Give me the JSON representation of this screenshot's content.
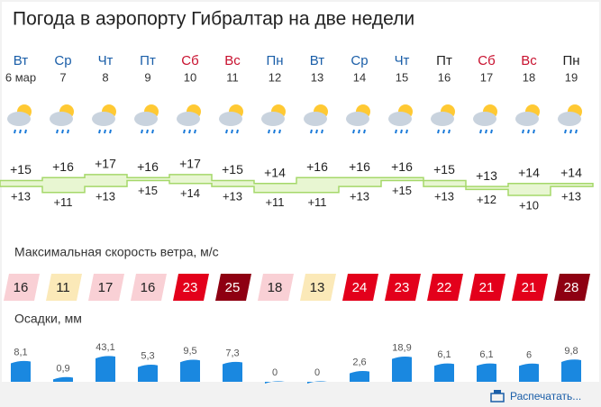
{
  "title": "Погода в аэропорту Гибралтар на две недели",
  "wind_title": "Максимальная скорость ветра, м/с",
  "precip_title": "Осадки, мм",
  "print_link": "Распечатать...",
  "days": [
    {
      "weekday": "Вт",
      "date": "6 мар",
      "weekday_color": "#1a5ea8",
      "tmax": 15,
      "tmax_label": "+15",
      "tmin": 13,
      "tmin_label": "+13",
      "wind": 16,
      "wind_color": "#f9d0d5",
      "precip": 8.1,
      "precip_label": "8,1"
    },
    {
      "weekday": "Ср",
      "date": "7",
      "weekday_color": "#1a5ea8",
      "tmax": 16,
      "tmax_label": "+16",
      "tmin": 11,
      "tmin_label": "+11",
      "wind": 11,
      "wind_color": "#fbe9b8",
      "precip": 0.9,
      "precip_label": "0,9"
    },
    {
      "weekday": "Чт",
      "date": "8",
      "weekday_color": "#1a5ea8",
      "tmax": 17,
      "tmax_label": "+17",
      "tmin": 13,
      "tmin_label": "+13",
      "wind": 17,
      "wind_color": "#f9d0d5",
      "precip": 43.1,
      "precip_label": "43,1"
    },
    {
      "weekday": "Пт",
      "date": "9",
      "weekday_color": "#1a5ea8",
      "tmax": 16,
      "tmax_label": "+16",
      "tmin": 15,
      "tmin_label": "+15",
      "wind": 16,
      "wind_color": "#f9d0d5",
      "precip": 5.3,
      "precip_label": "5,3"
    },
    {
      "weekday": "Сб",
      "date": "10",
      "weekday_color": "#c8102e",
      "tmax": 17,
      "tmax_label": "+17",
      "tmin": 14,
      "tmin_label": "+14",
      "wind": 23,
      "wind_color": "#e3001b",
      "precip": 9.5,
      "precip_label": "9,5"
    },
    {
      "weekday": "Вс",
      "date": "11",
      "weekday_color": "#c8102e",
      "tmax": 15,
      "tmax_label": "+15",
      "tmin": 13,
      "tmin_label": "+13",
      "wind": 25,
      "wind_color": "#8e0012",
      "precip": 7.3,
      "precip_label": "7,3"
    },
    {
      "weekday": "Пн",
      "date": "12",
      "weekday_color": "#1a5ea8",
      "tmax": 14,
      "tmax_label": "+14",
      "tmin": 11,
      "tmin_label": "+11",
      "wind": 18,
      "wind_color": "#f9d0d5",
      "precip": 0,
      "precip_label": "0"
    },
    {
      "weekday": "Вт",
      "date": "13",
      "weekday_color": "#1a5ea8",
      "tmax": 16,
      "tmax_label": "+16",
      "tmin": 11,
      "tmin_label": "+11",
      "wind": 13,
      "wind_color": "#fbe9b8",
      "precip": 0,
      "precip_label": "0"
    },
    {
      "weekday": "Ср",
      "date": "14",
      "weekday_color": "#1a5ea8",
      "tmax": 16,
      "tmax_label": "+16",
      "tmin": 13,
      "tmin_label": "+13",
      "wind": 24,
      "wind_color": "#e3001b",
      "precip": 2.6,
      "precip_label": "2,6"
    },
    {
      "weekday": "Чт",
      "date": "15",
      "weekday_color": "#1a5ea8",
      "tmax": 16,
      "tmax_label": "+16",
      "tmin": 15,
      "tmin_label": "+15",
      "wind": 23,
      "wind_color": "#e3001b",
      "precip": 18.9,
      "precip_label": "18,9"
    },
    {
      "weekday": "Пт",
      "date": "16",
      "weekday_color": "#222222",
      "tmax": 15,
      "tmax_label": "+15",
      "tmin": 13,
      "tmin_label": "+13",
      "wind": 22,
      "wind_color": "#e3001b",
      "precip": 6.1,
      "precip_label": "6,1"
    },
    {
      "weekday": "Сб",
      "date": "17",
      "weekday_color": "#c8102e",
      "tmax": 13,
      "tmax_label": "+13",
      "tmin": 12,
      "tmin_label": "+12",
      "wind": 21,
      "wind_color": "#e3001b",
      "precip": 6.1,
      "precip_label": "6,1"
    },
    {
      "weekday": "Вс",
      "date": "18",
      "weekday_color": "#c8102e",
      "tmax": 14,
      "tmax_label": "+14",
      "tmin": 10,
      "tmin_label": "+10",
      "wind": 21,
      "wind_color": "#e3001b",
      "precip": 6,
      "precip_label": "6"
    },
    {
      "weekday": "Пн",
      "date": "19",
      "weekday_color": "#222222",
      "tmax": 14,
      "tmax_label": "+14",
      "tmin": 13,
      "tmin_label": "+13",
      "wind": 28,
      "wind_color": "#8e0012",
      "precip": 9.8,
      "precip_label": "9,8"
    }
  ]
}
